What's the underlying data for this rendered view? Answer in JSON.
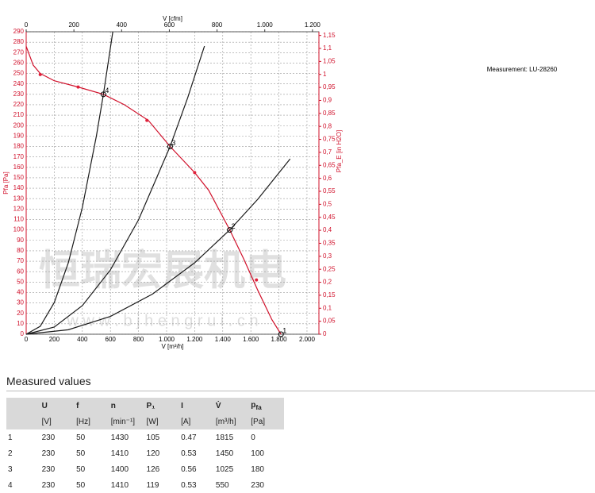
{
  "chart_data": {
    "type": "line",
    "x_label": "V [m³/h]",
    "x2_label": "V [cfm]",
    "y_label": "Pfa [Pa]",
    "y2_label": "Pfa_E [in H2O]",
    "xlim": [
      0,
      2085
    ],
    "xticks": [
      0,
      200,
      400,
      600,
      800,
      {
        "value": 1000,
        "label": "1.000"
      },
      {
        "value": 1200,
        "label": "1.200"
      },
      {
        "value": 1400,
        "label": "1.400"
      },
      {
        "value": 1600,
        "label": "1.600"
      },
      {
        "value": 1800,
        "label": "1.800"
      },
      {
        "value": 2000,
        "label": "2.000"
      }
    ],
    "x2lim": [
      0,
      1227
    ],
    "x2ticks": [
      0,
      200,
      400,
      600,
      800,
      {
        "value": 1000,
        "label": "1.000"
      },
      {
        "value": 1200,
        "label": "1.200"
      }
    ],
    "ylim": [
      0,
      290
    ],
    "yticks": [
      0,
      10,
      20,
      30,
      40,
      50,
      60,
      70,
      80,
      90,
      100,
      110,
      120,
      130,
      140,
      150,
      160,
      170,
      180,
      190,
      200,
      210,
      220,
      230,
      240,
      250,
      260,
      270,
      280,
      290
    ],
    "y2lim": [
      0,
      1.1642
    ],
    "y2ticks": [
      0,
      {
        "value": 0.05,
        "label": "0,05"
      },
      {
        "value": 0.1,
        "label": "0,1"
      },
      {
        "value": 0.15,
        "label": "0,15"
      },
      {
        "value": 0.2,
        "label": "0,2"
      },
      {
        "value": 0.25,
        "label": "0,25"
      },
      {
        "value": 0.3,
        "label": "0,3"
      },
      {
        "value": 0.35,
        "label": "0,35"
      },
      {
        "value": 0.4,
        "label": "0,4"
      },
      {
        "value": 0.45,
        "label": "0,45"
      },
      {
        "value": 0.5,
        "label": "0,5"
      },
      {
        "value": 0.55,
        "label": "0,55"
      },
      {
        "value": 0.6,
        "label": "0,6"
      },
      {
        "value": 0.65,
        "label": "0,65"
      },
      {
        "value": 0.7,
        "label": "0,7"
      },
      {
        "value": 0.75,
        "label": "0,75"
      },
      {
        "value": 0.8,
        "label": "0,8"
      },
      {
        "value": 0.85,
        "label": "0,85"
      },
      {
        "value": 0.9,
        "label": "0,9"
      },
      {
        "value": 0.95,
        "label": "0,95"
      },
      1,
      {
        "value": 1.05,
        "label": "1,05"
      },
      {
        "value": 1.1,
        "label": "1,1"
      },
      {
        "value": 1.15,
        "label": "1,15"
      }
    ],
    "grid": true,
    "series": [
      {
        "color": "#d0102a",
        "x": [
          0,
          50,
          100,
          200,
          370,
          550,
          700,
          870,
          1025,
          1200,
          1300,
          1450,
          1550,
          1650,
          1750,
          1815
        ],
        "values": [
          276,
          258,
          250,
          243,
          237,
          230,
          220,
          205,
          180,
          155,
          138,
          100,
          72,
          42,
          14,
          0
        ]
      },
      {
        "color": "#1a1a1a",
        "x": [
          0,
          100,
          200,
          300,
          400,
          500,
          550,
          617
        ],
        "values": [
          0,
          7.6,
          30.4,
          68.4,
          121.6,
          190,
          230,
          290
        ]
      },
      {
        "color": "#1a1a1a",
        "x": [
          0,
          200,
          400,
          600,
          800,
          1025,
          1150,
          1270
        ],
        "values": [
          0,
          6.9,
          27.4,
          61.7,
          109.6,
          180,
          226.6,
          276.3
        ]
      },
      {
        "color": "#1a1a1a",
        "x": [
          0,
          300,
          600,
          900,
          1200,
          1450,
          1650,
          1880
        ],
        "values": [
          0,
          4.3,
          17.1,
          38.5,
          68.5,
          100,
          129.5,
          168.1
        ]
      }
    ],
    "markers": {
      "color": "#e0203a",
      "x": [
        100,
        370,
        860,
        1200,
        1640
      ],
      "values": [
        249,
        237,
        205,
        155,
        52
      ]
    },
    "points": [
      {
        "label": "1",
        "x": 1815,
        "y": 0
      },
      {
        "label": "2",
        "x": 1450,
        "y": 100
      },
      {
        "label": "3",
        "x": 1025,
        "y": 180
      },
      {
        "label": "4",
        "x": 550,
        "y": 230
      }
    ]
  },
  "measurement": "Measurement: LU-28260",
  "watermark": {
    "text": "恒瑞宏展机电",
    "url": "w w w . b j h e n g r u i . c n"
  },
  "table": {
    "title": "Measured values",
    "header": [
      "",
      "U",
      "f",
      "n",
      "P₁",
      "I",
      "V̇",
      {
        "main": "p",
        "sub": "fa"
      }
    ],
    "units": [
      "",
      "[V]",
      "[Hz]",
      "[min⁻¹]",
      "[W]",
      "[A]",
      "[m³/h]",
      "[Pa]"
    ],
    "rows": [
      [
        "1",
        "230",
        "50",
        "1430",
        "105",
        "0.47",
        "1815",
        "0"
      ],
      [
        "2",
        "230",
        "50",
        "1410",
        "120",
        "0.53",
        "1450",
        "100"
      ],
      [
        "3",
        "230",
        "50",
        "1400",
        "126",
        "0.56",
        "1025",
        "180"
      ],
      [
        "4",
        "230",
        "50",
        "1410",
        "119",
        "0.53",
        "550",
        "230"
      ]
    ]
  }
}
